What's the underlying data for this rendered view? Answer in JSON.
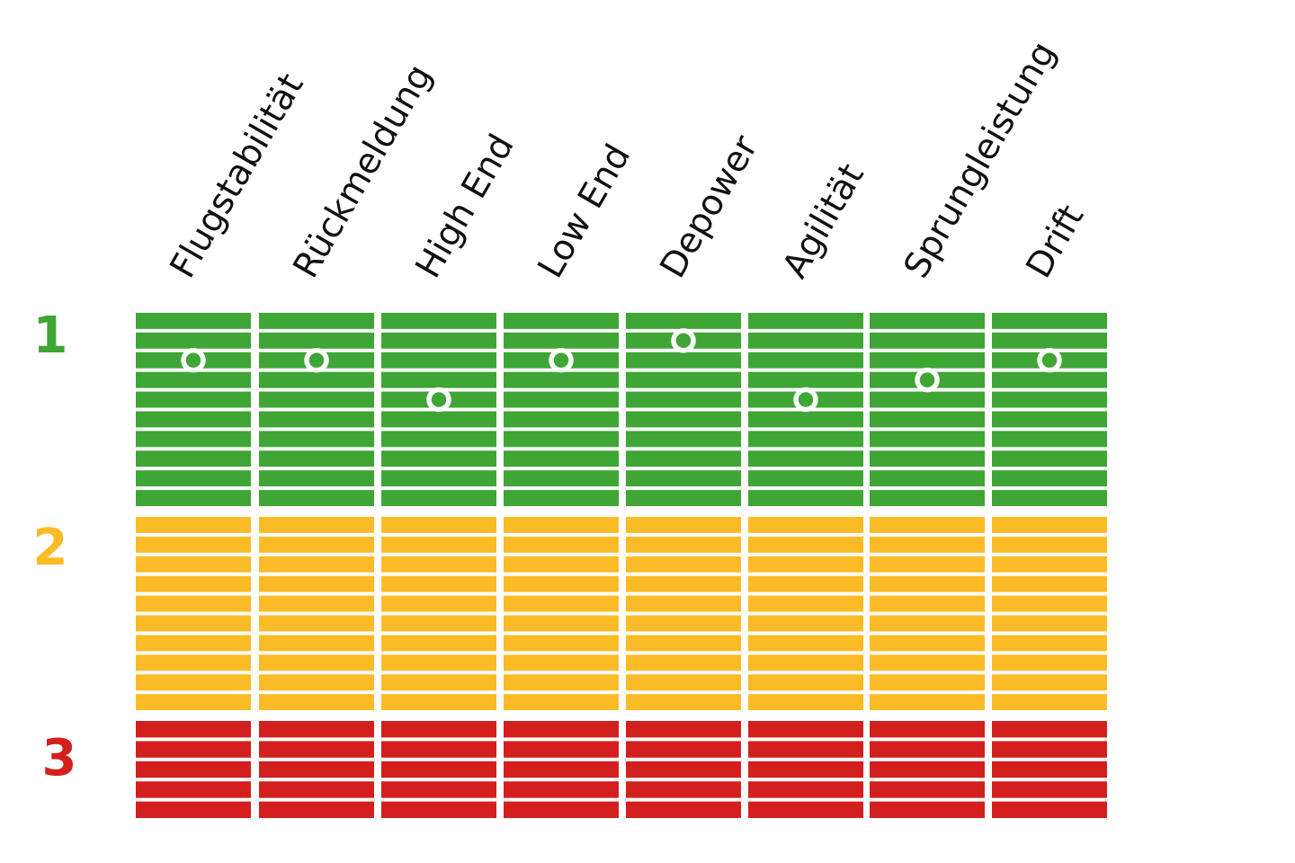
{
  "chart_data": {
    "type": "table",
    "columns": [
      "Flugstabilität",
      "Rückmeldung",
      "High End",
      "Low End",
      "Depower",
      "Agilität",
      "Sprungleistung",
      "Drift"
    ],
    "tiers": [
      {
        "label": "1",
        "color": "#3fa535",
        "levels": 10
      },
      {
        "label": "2",
        "color": "#fbbb26",
        "levels": 10
      },
      {
        "label": "3",
        "color": "#d3201f",
        "levels": 5
      }
    ],
    "ratings": [
      {
        "column": "Flugstabilität",
        "tier": "1",
        "level": 3
      },
      {
        "column": "Rückmeldung",
        "tier": "1",
        "level": 3
      },
      {
        "column": "High End",
        "tier": "1",
        "level": 5
      },
      {
        "column": "Low End",
        "tier": "1",
        "level": 3
      },
      {
        "column": "Depower",
        "tier": "1",
        "level": 2
      },
      {
        "column": "Agilität",
        "tier": "1",
        "level": 5
      },
      {
        "column": "Sprungleistung",
        "tier": "1",
        "level": 4
      },
      {
        "column": "Drift",
        "tier": "1",
        "level": 3
      }
    ],
    "marker_color": "#ffffff"
  }
}
